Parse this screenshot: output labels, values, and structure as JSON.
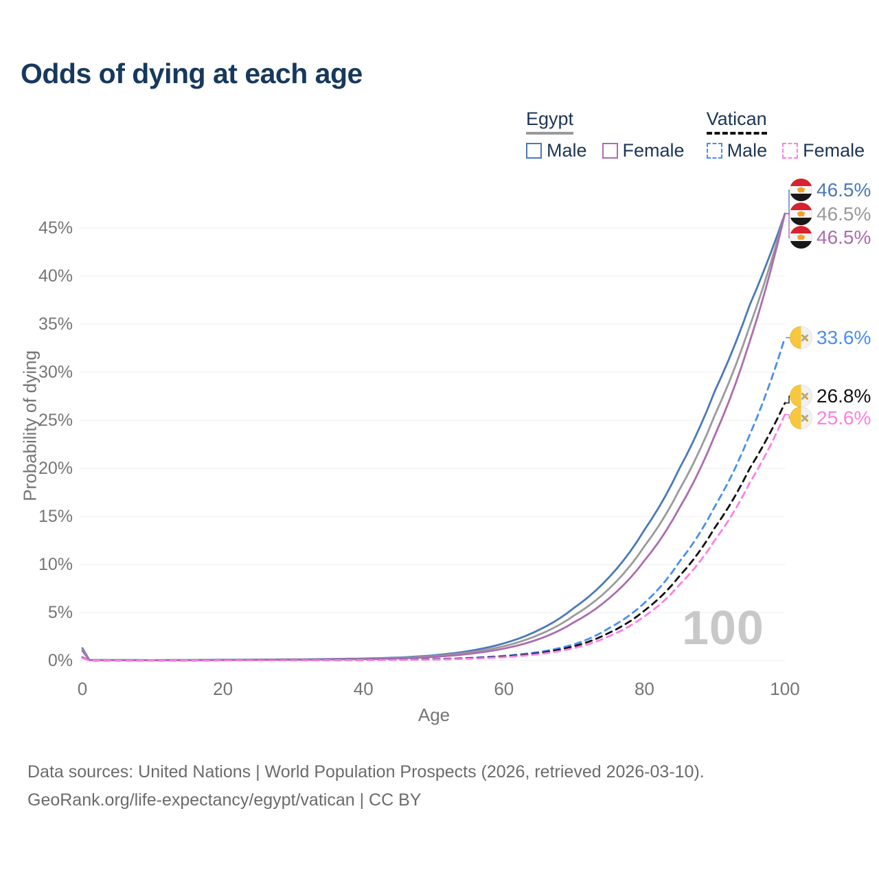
{
  "title": "Odds of dying at each age",
  "legend": {
    "groups": [
      {
        "title": "Egypt",
        "underline_series": 1,
        "items": [
          {
            "label": "Male",
            "series": 0
          },
          {
            "label": "Female",
            "series": 2
          }
        ]
      },
      {
        "title": "Vatican",
        "underline_series": 4,
        "items": [
          {
            "label": "Male",
            "series": 3
          },
          {
            "label": "Female",
            "series": 5
          }
        ]
      }
    ]
  },
  "footer": {
    "line1": "Data sources: United Nations | World Population Prospects (2026, retrieved 2026-03-10).",
    "line2": "GeoRank.org/life-expectancy/egypt/vatican | CC BY"
  },
  "chart_data": {
    "type": "line",
    "title": "Odds of dying at each age",
    "xlabel": "Age",
    "ylabel": "Probability of dying",
    "x_range": [
      0,
      100
    ],
    "y_range_percent": [
      0,
      48
    ],
    "xticks": [
      0,
      20,
      40,
      60,
      80,
      100
    ],
    "yticks_percent": [
      0,
      5,
      10,
      15,
      20,
      25,
      30,
      35,
      40,
      45
    ],
    "ytick_suffix": "%",
    "grid": "horizontal",
    "legend_position": "top-right",
    "age_counter_label": "100",
    "sample_ages": [
      0,
      1,
      10,
      20,
      30,
      40,
      45,
      50,
      55,
      60,
      65,
      70,
      75,
      80,
      85,
      90,
      95,
      100
    ],
    "series": [
      {
        "id": "egypt-male",
        "country": "Egypt",
        "sex": "Male",
        "flag": "egypt",
        "color": "#4a79b8",
        "dashed": false,
        "end_label": "46.5%",
        "end_value_percent": 46.5,
        "values_percent": [
          1.3,
          0.07,
          0.05,
          0.09,
          0.13,
          0.22,
          0.32,
          0.55,
          1.0,
          1.8,
          3.2,
          5.5,
          8.7,
          13.6,
          20.0,
          28.0,
          37.0,
          46.5
        ]
      },
      {
        "id": "egypt-both",
        "country": "Egypt",
        "sex": "Both sexes",
        "flag": "egypt",
        "color": "#9a9a9a",
        "dashed": false,
        "end_label": "46.5%",
        "end_value_percent": 46.5,
        "values_percent": [
          1.15,
          0.06,
          0.04,
          0.07,
          0.11,
          0.19,
          0.27,
          0.47,
          0.85,
          1.5,
          2.7,
          4.7,
          7.5,
          11.9,
          17.8,
          25.5,
          34.8,
          46.5
        ]
      },
      {
        "id": "egypt-female",
        "country": "Egypt",
        "sex": "Female",
        "flag": "egypt",
        "color": "#ad6cae",
        "dashed": false,
        "end_label": "46.5%",
        "end_value_percent": 46.5,
        "values_percent": [
          1.0,
          0.05,
          0.035,
          0.055,
          0.09,
          0.15,
          0.22,
          0.38,
          0.7,
          1.25,
          2.25,
          4.0,
          6.5,
          10.4,
          15.9,
          23.4,
          33.2,
          46.5
        ]
      },
      {
        "id": "vatican-male",
        "country": "Vatican",
        "sex": "Male",
        "flag": "vatican",
        "color": "#4a8ef4",
        "dashed": true,
        "end_label": "33.6%",
        "end_value_percent": 33.6,
        "values_percent": [
          0.35,
          0.018,
          0.012,
          0.03,
          0.045,
          0.07,
          0.1,
          0.16,
          0.28,
          0.5,
          0.9,
          1.7,
          3.4,
          6.0,
          10.3,
          16.0,
          23.5,
          33.6
        ]
      },
      {
        "id": "vatican-both",
        "country": "Vatican",
        "sex": "Both sexes",
        "flag": "vatican",
        "color": "#111111",
        "dashed": true,
        "end_label": "26.8%",
        "end_value_percent": 26.8,
        "values_percent": [
          0.3,
          0.015,
          0.01,
          0.025,
          0.04,
          0.06,
          0.085,
          0.13,
          0.24,
          0.42,
          0.78,
          1.5,
          2.9,
          5.2,
          8.8,
          13.8,
          20.0,
          26.8
        ]
      },
      {
        "id": "vatican-female",
        "country": "Vatican",
        "sex": "Female",
        "flag": "vatican",
        "color": "#ff7ee4",
        "dashed": true,
        "end_label": "25.6%",
        "end_value_percent": 25.6,
        "values_percent": [
          0.27,
          0.012,
          0.009,
          0.02,
          0.035,
          0.05,
          0.07,
          0.11,
          0.2,
          0.36,
          0.68,
          1.3,
          2.55,
          4.6,
          7.9,
          12.5,
          18.5,
          25.6
        ]
      }
    ]
  }
}
